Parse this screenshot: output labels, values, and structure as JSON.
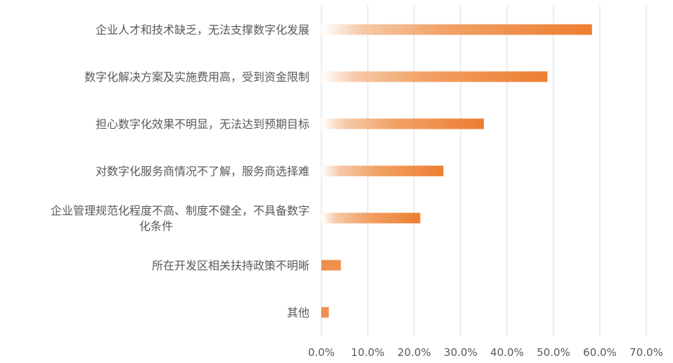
{
  "chart_data": {
    "type": "bar",
    "orientation": "horizontal",
    "categories": [
      [
        "企业人才和技术缺乏，无法支撑数字化发展"
      ],
      [
        "数字化解决方案及实施费用高，受到资金限制"
      ],
      [
        "担心数字化效果不明显，无法达到预期目标"
      ],
      [
        "对数字化服务商情况不了解，服务商选择难"
      ],
      [
        "企业管理规范化程度不高、制度不健全，不具备数字",
        "化条件"
      ],
      [
        "所在开发区相关扶持政策不明晰"
      ],
      [
        "其他"
      ]
    ],
    "values": [
      58.3,
      48.7,
      35.0,
      26.3,
      21.3,
      4.2,
      1.6
    ],
    "xlim": [
      0,
      70
    ],
    "xticks": [
      "0.0%",
      "10.0%",
      "20.0%",
      "30.0%",
      "40.0%",
      "50.0%",
      "60.0%",
      "70.0%"
    ],
    "grid": true,
    "bar_color": "#ED7D31",
    "title": "",
    "xlabel": "",
    "ylabel": ""
  }
}
